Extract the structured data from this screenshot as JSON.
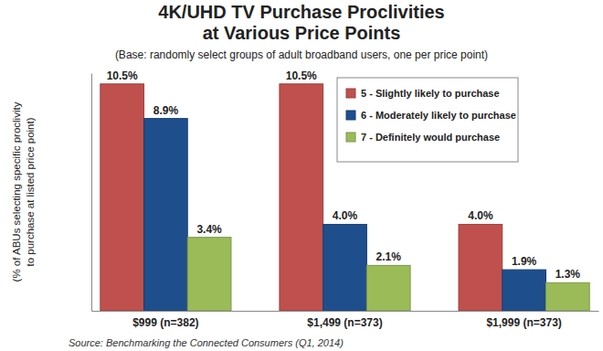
{
  "chart_data": {
    "type": "bar",
    "title": [
      "4K/UHD TV Purchase Proclivities",
      "at Various Price Points"
    ],
    "subtitle": "(Base: randomly select groups of adult broadband users, one per price point)",
    "y_label": [
      "(% of ABUs selecting specific proclivity",
      "to purchase at listed price point)"
    ],
    "source": "Source: Benchmarking the Connected Consumers (Q1, 2014)",
    "categories": [
      "$999 (n=382)",
      "$1,499 (n=373)",
      "$1,999 (n=373)"
    ],
    "series": [
      {
        "name": "5 - Slightly likely to purchase",
        "color": "#c0504d",
        "values": [
          10.5,
          10.5,
          4.0
        ],
        "value_labels": [
          "10.5%",
          "10.5%",
          "4.0%"
        ]
      },
      {
        "name": "6 - Moderately likely to purchase",
        "color": "#1f4e8c",
        "values": [
          8.9,
          4.0,
          1.9
        ],
        "value_labels": [
          "8.9%",
          "4.0%",
          "1.9%"
        ]
      },
      {
        "name": "7 - Definitely would purchase",
        "color": "#9bbb59",
        "values": [
          3.4,
          2.1,
          1.3
        ],
        "value_labels": [
          "3.4%",
          "2.1%",
          "1.3%"
        ]
      }
    ],
    "ylim": [
      0,
      11
    ],
    "tick_labels": "x",
    "data_labels": true,
    "legend": "top-right",
    "grid": false
  }
}
